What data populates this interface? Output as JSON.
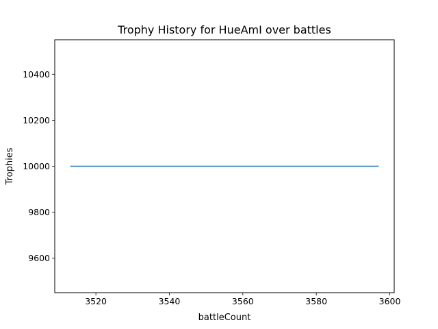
{
  "chart_data": {
    "type": "line",
    "title": "Trophy History for HueAmI over battles",
    "xlabel": "battleCount",
    "ylabel": "Trophies",
    "xlim": [
      3508.8,
      3601.2
    ],
    "ylim": [
      9450,
      10550
    ],
    "xticks": [
      3520,
      3540,
      3560,
      3580,
      3600
    ],
    "yticks": [
      9600,
      9800,
      10000,
      10200,
      10400
    ],
    "grid": false,
    "series": [
      {
        "color": "#1f77b4",
        "x": [
          3513,
          3597
        ],
        "y": [
          10000,
          10000
        ]
      }
    ]
  }
}
